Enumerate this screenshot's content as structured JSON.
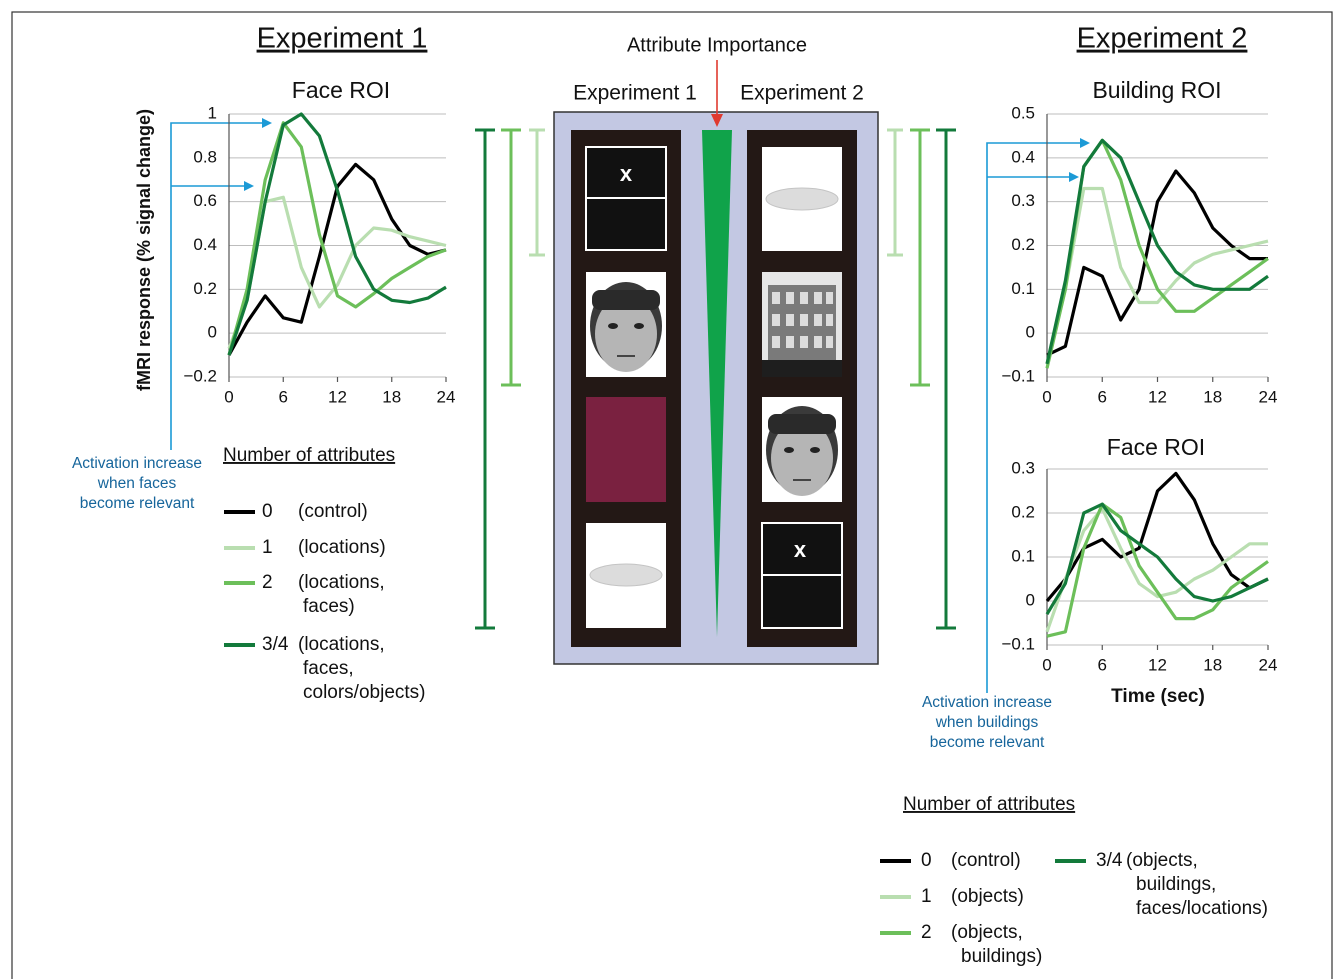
{
  "headings": [
    "Experiment 1",
    "Experiment 2"
  ],
  "center": {
    "title": "Attribute Importance",
    "columns": [
      "Experiment 1",
      "Experiment 2"
    ],
    "marks": [
      "x",
      "x"
    ]
  },
  "annotations": [
    {
      "lines": [
        "Activation increase",
        "when faces",
        "become relevant"
      ]
    },
    {
      "lines": [
        "Activation increase",
        "when buildings",
        "become relevant"
      ]
    }
  ],
  "chart_data": [
    {
      "type": "line",
      "title": "Face ROI",
      "y_label": "fMRI response (% signal change)",
      "x": [
        0,
        2,
        4,
        6,
        8,
        10,
        12,
        14,
        16,
        18,
        20,
        22,
        24
      ],
      "xlim": [
        0,
        24
      ],
      "xticks": [
        0,
        6,
        12,
        18,
        24
      ],
      "ylim": [
        -0.2,
        1
      ],
      "yticks": [
        {
          "value": -0.2,
          "label": "−0.2"
        },
        0,
        0.2,
        0.4,
        0.6,
        0.8,
        1
      ],
      "grid": true,
      "legend_title": "Number of attributes",
      "series": [
        {
          "name": "0",
          "label": [
            "(control)"
          ],
          "color": "#000000",
          "values": [
            -0.1,
            0.05,
            0.17,
            0.07,
            0.05,
            0.35,
            0.67,
            0.77,
            0.7,
            0.52,
            0.4,
            0.36,
            0.38
          ]
        },
        {
          "name": "1",
          "label": [
            "(locations)"
          ],
          "color": "#b9deb0",
          "values": [
            -0.07,
            0.15,
            0.6,
            0.62,
            0.3,
            0.12,
            0.22,
            0.4,
            0.48,
            0.47,
            0.44,
            0.42,
            0.4
          ]
        },
        {
          "name": "2",
          "label": [
            "(locations,",
            "faces)"
          ],
          "color": "#6cbf5a",
          "values": [
            -0.1,
            0.2,
            0.7,
            0.96,
            0.85,
            0.45,
            0.17,
            0.12,
            0.18,
            0.25,
            0.3,
            0.35,
            0.38
          ]
        },
        {
          "name": "3/4",
          "label": [
            "(locations,",
            "faces,",
            "colors/objects)"
          ],
          "color": "#137a3b",
          "values": [
            -0.1,
            0.15,
            0.6,
            0.95,
            1.0,
            0.9,
            0.65,
            0.35,
            0.2,
            0.15,
            0.14,
            0.16,
            0.21
          ]
        }
      ]
    },
    {
      "type": "line",
      "title": "Building ROI",
      "x": [
        0,
        2,
        4,
        6,
        8,
        10,
        12,
        14,
        16,
        18,
        20,
        22,
        24
      ],
      "xlim": [
        0,
        24
      ],
      "xticks": [
        0,
        6,
        12,
        18,
        24
      ],
      "ylim": [
        -0.1,
        0.5
      ],
      "yticks": [
        {
          "value": -0.1,
          "label": "−0.1"
        },
        0,
        0.1,
        0.2,
        0.3,
        0.4,
        0.5
      ],
      "grid": true,
      "legend_title": "Number of attributes",
      "series": [
        {
          "name": "0",
          "label": [
            "(control)"
          ],
          "color": "#000000",
          "values": [
            -0.05,
            -0.03,
            0.15,
            0.13,
            0.03,
            0.1,
            0.3,
            0.37,
            0.32,
            0.24,
            0.2,
            0.17,
            0.17
          ]
        },
        {
          "name": "1",
          "label": [
            "(objects)"
          ],
          "color": "#b9deb0",
          "values": [
            -0.07,
            0.1,
            0.33,
            0.33,
            0.15,
            0.07,
            0.07,
            0.12,
            0.16,
            0.18,
            0.19,
            0.2,
            0.21
          ]
        },
        {
          "name": "2",
          "label": [
            "(objects,",
            "buildings)"
          ],
          "color": "#6cbf5a",
          "values": [
            -0.08,
            0.1,
            0.38,
            0.44,
            0.35,
            0.2,
            0.1,
            0.05,
            0.05,
            0.08,
            0.11,
            0.14,
            0.17
          ]
        },
        {
          "name": "3/4",
          "label": [
            "(objects,",
            "buildings,",
            "faces/locations)"
          ],
          "color": "#137a3b",
          "values": [
            -0.07,
            0.12,
            0.38,
            0.44,
            0.4,
            0.3,
            0.2,
            0.14,
            0.11,
            0.1,
            0.1,
            0.1,
            0.13
          ]
        }
      ]
    },
    {
      "type": "line",
      "title": "Face ROI",
      "x_label": "Time (sec)",
      "x": [
        0,
        2,
        4,
        6,
        8,
        10,
        12,
        14,
        16,
        18,
        20,
        22,
        24
      ],
      "xlim": [
        0,
        24
      ],
      "xticks": [
        0,
        6,
        12,
        18,
        24
      ],
      "ylim": [
        -0.1,
        0.3
      ],
      "yticks": [
        {
          "value": -0.1,
          "label": "−0.1"
        },
        0,
        0.1,
        0.2,
        0.3
      ],
      "grid": true,
      "series": [
        {
          "color": "#000000",
          "values": [
            0,
            0.05,
            0.12,
            0.14,
            0.1,
            0.12,
            0.25,
            0.29,
            0.23,
            0.13,
            0.06,
            0.03,
            0.05
          ]
        },
        {
          "color": "#b9deb0",
          "values": [
            -0.07,
            0.05,
            0.16,
            0.21,
            0.12,
            0.04,
            0.01,
            0.02,
            0.05,
            0.07,
            0.1,
            0.13,
            0.13
          ]
        },
        {
          "color": "#6cbf5a",
          "values": [
            -0.08,
            -0.07,
            0.12,
            0.22,
            0.19,
            0.08,
            0.02,
            -0.04,
            -0.04,
            -0.02,
            0.03,
            0.06,
            0.09
          ]
        },
        {
          "color": "#137a3b",
          "values": [
            -0.03,
            0.04,
            0.2,
            0.22,
            0.16,
            0.13,
            0.1,
            0.05,
            0.01,
            0,
            0.01,
            0.03,
            0.05
          ]
        }
      ]
    }
  ]
}
